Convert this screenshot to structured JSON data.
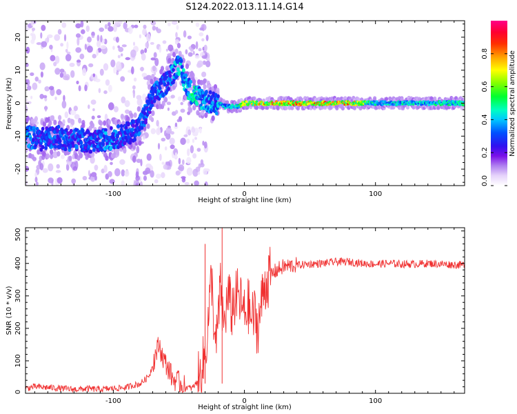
{
  "title": "S124.2022.013.11.14.G14",
  "chart_data": [
    {
      "type": "heatmap",
      "xlabel": "Height of straight line (km)",
      "ylabel": "Frequency (Hz)",
      "xlim": [
        -167,
        168
      ],
      "ylim": [
        -25,
        25
      ],
      "x_ticks": [
        -100,
        0,
        100
      ],
      "x_tick_labels": [
        "-100",
        "0",
        "100"
      ],
      "y_ticks": [
        -20,
        -10,
        0,
        10,
        20
      ],
      "y_tick_labels": [
        "-20",
        "-10",
        "0",
        "10",
        "20"
      ],
      "colorbar": {
        "label": "Normalized spectral amplitude",
        "range": [
          0,
          1
        ],
        "ticks": [
          0.0,
          0.2,
          0.4,
          0.6,
          0.8
        ],
        "tick_labels": [
          "0.0",
          "0.2",
          "0.4",
          "0.6",
          "0.8"
        ],
        "colors": [
          "#ffffff",
          "#d8b8f8",
          "#8a2be2",
          "#3a1cf0",
          "#0040ff",
          "#00e0ff",
          "#00ff40",
          "#ffff00",
          "#ff8000",
          "#ff0000",
          "#ff0088"
        ]
      },
      "ridge": {
        "x": [
          -167,
          -155,
          -145,
          -135,
          -125,
          -115,
          -105,
          -95,
          -88,
          -80,
          -75,
          -70,
          -65,
          -60,
          -55,
          -50,
          -45,
          -40,
          -35,
          -30,
          -25,
          -20,
          -15,
          -10,
          -5,
          0,
          5,
          10,
          20,
          40,
          60,
          80,
          100,
          120,
          140,
          168
        ],
        "freq": [
          -10,
          -11,
          -10,
          -11,
          -11,
          -12,
          -11,
          -10,
          -9,
          -7,
          -3,
          2,
          4,
          6,
          9,
          12,
          6,
          3,
          2,
          1,
          0,
          0,
          -1,
          -1,
          -1,
          0,
          0,
          0,
          0,
          0,
          0,
          0,
          0,
          0,
          0,
          0
        ],
        "amplitude": [
          0.4,
          0.35,
          0.35,
          0.35,
          0.35,
          0.35,
          0.4,
          0.35,
          0.35,
          0.35,
          0.35,
          0.35,
          0.4,
          0.35,
          0.4,
          0.45,
          0.45,
          0.5,
          0.45,
          0.4,
          0.4,
          0.45,
          0.45,
          0.45,
          0.5,
          0.8,
          0.7,
          0.8,
          0.85,
          0.85,
          0.85,
          0.85,
          0.5,
          0.5,
          0.5,
          0.55
        ]
      }
    },
    {
      "type": "line",
      "xlabel": "Height of straight line (km)",
      "ylabel": "SNR (10 * v/v)",
      "xlim": [
        -167,
        168
      ],
      "ylim": [
        0,
        510
      ],
      "x_ticks": [
        -100,
        0,
        100
      ],
      "x_tick_labels": [
        "-100",
        "0",
        "100"
      ],
      "y_ticks": [
        0,
        100,
        200,
        300,
        400,
        500
      ],
      "y_tick_labels": [
        "0",
        "100",
        "200",
        "300",
        "400",
        "500"
      ],
      "color": "#f03030",
      "series": [
        {
          "x": [
            -167,
            -160,
            -150,
            -140,
            -130,
            -120,
            -110,
            -100,
            -90,
            -85,
            -80,
            -75,
            -72,
            -70,
            -67,
            -65,
            -63,
            -60,
            -57,
            -55,
            -50,
            -45,
            -40,
            -35,
            -32,
            -30,
            -28,
            -25,
            -22,
            -20,
            -18,
            -16,
            -14,
            -12,
            -10,
            -8,
            -5,
            -2,
            0,
            3,
            5,
            8,
            10,
            12,
            15,
            18,
            20,
            25,
            30,
            40,
            50,
            60,
            70,
            80,
            90,
            100,
            110,
            120,
            130,
            140,
            150,
            160,
            168
          ],
          "y": [
            15,
            20,
            18,
            15,
            12,
            14,
            12,
            15,
            18,
            25,
            28,
            45,
            60,
            90,
            130,
            150,
            120,
            90,
            70,
            45,
            35,
            20,
            15,
            40,
            80,
            120,
            200,
            360,
            120,
            230,
            330,
            200,
            260,
            300,
            250,
            280,
            300,
            270,
            240,
            270,
            230,
            240,
            200,
            250,
            330,
            350,
            365,
            380,
            390,
            395,
            398,
            400,
            405,
            405,
            400,
            398,
            400,
            398,
            398,
            400,
            398,
            396,
            395
          ]
        }
      ],
      "annotations": [
        {
          "x": -30,
          "y": 460
        },
        {
          "x": -17,
          "y": 510
        }
      ]
    }
  ]
}
